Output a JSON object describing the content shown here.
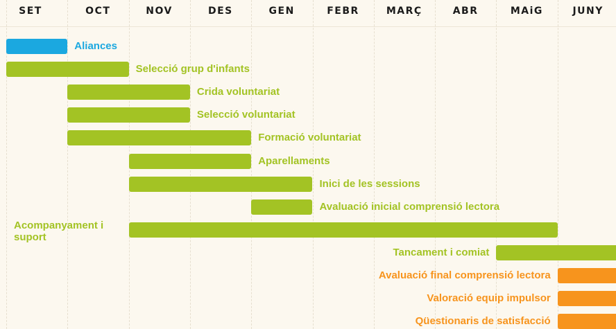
{
  "chart_data": {
    "type": "gantt",
    "categories": [
      "SET",
      "OCT",
      "NOV",
      "DES",
      "GEN",
      "FEBR",
      "MARÇ",
      "ABR",
      "MAiG",
      "JUNY"
    ],
    "tasks": [
      {
        "name": "Aliances",
        "start": 0,
        "end": 1,
        "color": "#1ba8e0",
        "label_side": "right"
      },
      {
        "name": "Selecció grup d'infants",
        "start": 0,
        "end": 2,
        "color": "#a3c324",
        "label_side": "right"
      },
      {
        "name": "Crida voluntariat",
        "start": 1,
        "end": 3,
        "color": "#a3c324",
        "label_side": "right"
      },
      {
        "name": "Selecció voluntariat",
        "start": 1,
        "end": 3,
        "color": "#a3c324",
        "label_side": "right"
      },
      {
        "name": "Formació voluntariat",
        "start": 1,
        "end": 4,
        "color": "#a3c324",
        "label_side": "right"
      },
      {
        "name": "Aparellaments",
        "start": 2,
        "end": 4,
        "color": "#a3c324",
        "label_side": "right"
      },
      {
        "name": "Inici de les sessions",
        "start": 2,
        "end": 5,
        "color": "#a3c324",
        "label_side": "right"
      },
      {
        "name": "Avaluació inicial comprensió lectora",
        "start": 4,
        "end": 5,
        "color": "#a3c324",
        "label_side": "right"
      },
      {
        "name": "Acompanyament i suport",
        "start": 2,
        "end": 9,
        "color": "#a3c324",
        "label_side": "far-left"
      },
      {
        "name": "Tancament i comiat",
        "start": 8,
        "end": 10,
        "color": "#a3c324",
        "label_side": "left"
      },
      {
        "name": "Avaluació final comprensió lectora",
        "start": 9,
        "end": 10,
        "color": "#f7941d",
        "label_side": "left"
      },
      {
        "name": "Valoració equip impulsor",
        "start": 9,
        "end": 10,
        "color": "#f7941d",
        "label_side": "left"
      },
      {
        "name": "Qüestionaris de satisfacció",
        "start": 9,
        "end": 10,
        "color": "#f7941d",
        "label_side": "left"
      }
    ]
  }
}
